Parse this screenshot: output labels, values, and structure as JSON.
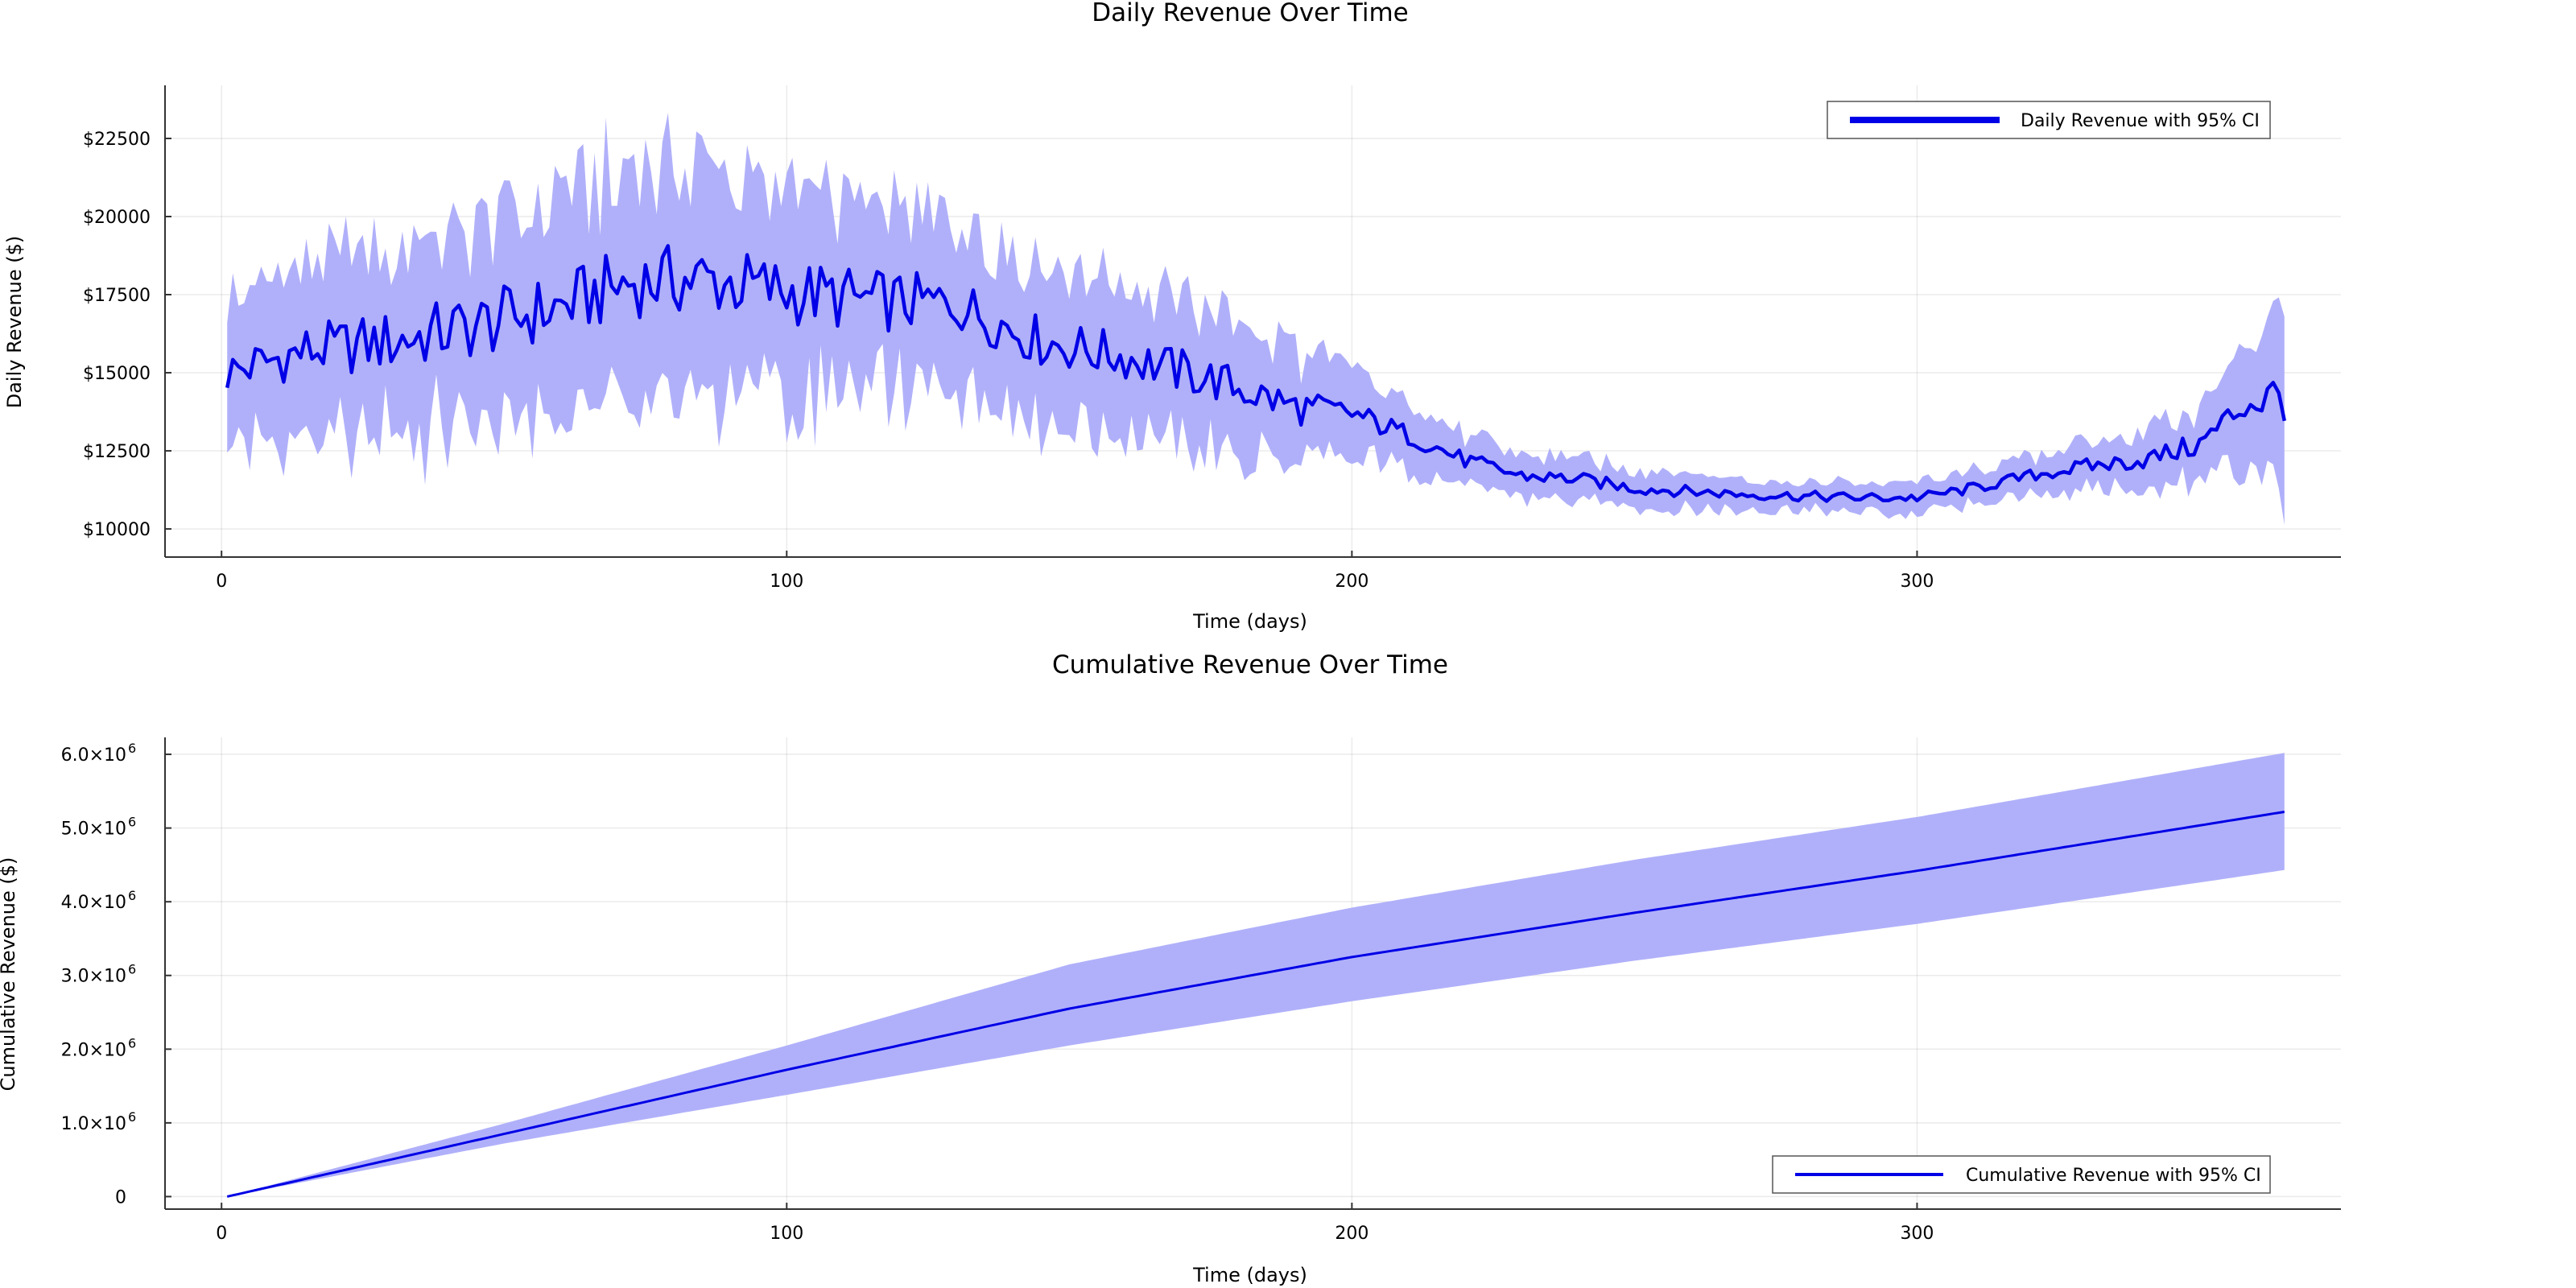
{
  "chart_data": [
    {
      "type": "line",
      "title": "Daily Revenue Over Time",
      "xlabel": "Time (days)",
      "ylabel": "Daily Revenue ($)",
      "xlim": [
        -10,
        375
      ],
      "ylim": [
        9100,
        24200
      ],
      "x_ticks": [
        0,
        100,
        200,
        300
      ],
      "y_ticks": [
        10000,
        12500,
        15000,
        17500,
        20000,
        22500
      ],
      "y_tick_labels": [
        "$10000",
        "$12500",
        "$15000",
        "$17500",
        "$20000",
        "$22500"
      ],
      "grid": true,
      "legend": "top-right",
      "band_color": "#b0b0fa",
      "line_color": "#0000e6",
      "series": [
        {
          "name": "Daily Revenue with 95% CI",
          "x_range": [
            1,
            365
          ],
          "anchor_days": [
            1,
            15,
            30,
            45,
            60,
            72,
            85,
            100,
            115,
            130,
            145,
            160,
            175,
            190,
            200,
            210,
            220,
            230,
            240,
            250,
            260,
            270,
            280,
            290,
            300,
            310,
            320,
            330,
            340,
            350,
            358,
            365
          ],
          "anchor_values": [
            15000,
            15700,
            16000,
            16500,
            17100,
            17900,
            18000,
            17600,
            17300,
            17200,
            16000,
            15500,
            14800,
            13900,
            13700,
            13000,
            12200,
            11700,
            11600,
            11300,
            11200,
            11100,
            11050,
            11000,
            11000,
            11300,
            11700,
            12000,
            12200,
            12700,
            14000,
            14300
          ],
          "ci_half_width_anchors": [
            2300,
            2600,
            3000,
            3300,
            3400,
            3500,
            3500,
            3400,
            3100,
            2700,
            2500,
            2300,
            2200,
            1800,
            1300,
            1000,
            800,
            700,
            650,
            600,
            550,
            500,
            500,
            500,
            500,
            550,
            600,
            750,
            900,
            1200,
            1900,
            2800
          ]
        }
      ]
    },
    {
      "type": "area",
      "title": "Cumulative Revenue Over Time",
      "xlabel": "Time (days)",
      "ylabel": "Cumulative Revenue ($)",
      "xlim": [
        -10,
        375
      ],
      "ylim": [
        -170000,
        6230000
      ],
      "x_ticks": [
        0,
        100,
        200,
        300
      ],
      "y_ticks": [
        0,
        1000000,
        2000000,
        3000000,
        4000000,
        5000000,
        6000000
      ],
      "y_tick_mantissas": [
        "0",
        "1.0×10",
        "2.0×10",
        "3.0×10",
        "4.0×10",
        "5.0×10",
        "6.0×10"
      ],
      "y_tick_exponent": "6",
      "grid": true,
      "legend": "bottom-right",
      "band_color": "#b0b0fa",
      "line_color": "#0000e6",
      "series": [
        {
          "name": "Cumulative Revenue with 95% CI",
          "x_range": [
            1,
            365
          ],
          "anchor_days": [
            1,
            50,
            100,
            150,
            200,
            250,
            300,
            365
          ],
          "mid": [
            0,
            850000,
            1720000,
            2550000,
            3250000,
            3850000,
            4420000,
            5220000
          ],
          "upper": [
            0,
            990000,
            2050000,
            3150000,
            3920000,
            4570000,
            5150000,
            6020000
          ],
          "lower": [
            0,
            720000,
            1380000,
            2050000,
            2650000,
            3200000,
            3700000,
            4430000
          ]
        }
      ]
    }
  ]
}
